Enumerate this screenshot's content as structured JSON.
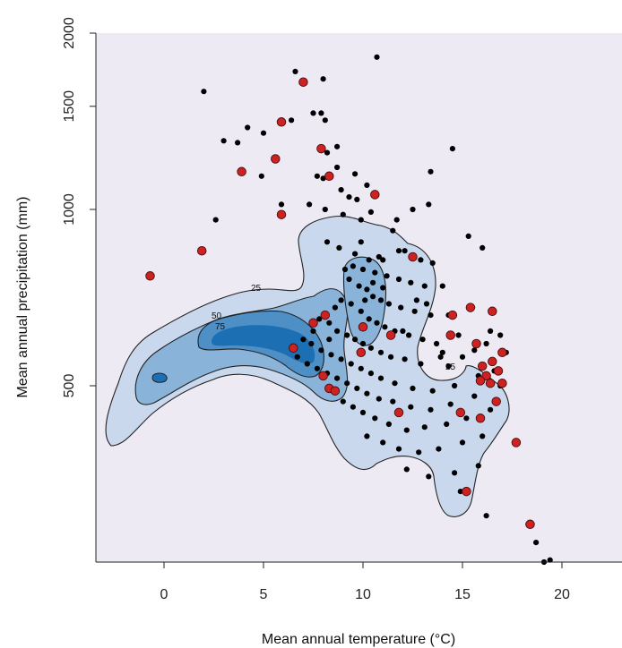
{
  "chart_data": {
    "type": "scatter",
    "title": "",
    "xlabel": "Mean annual temperature (°C)",
    "ylabel": "Mean annual precipitation (mm)",
    "xlim": [
      -3.5,
      23
    ],
    "ylim": [
      165,
      2000
    ],
    "y_scale": "log",
    "x_ticks": [
      0,
      5,
      10,
      15,
      20
    ],
    "y_ticks": [
      500,
      1000,
      1500,
      2000
    ],
    "grid": false,
    "background_color": "#eeeaf4",
    "contours": {
      "labels": [
        "25",
        "50",
        "75"
      ],
      "fill_colors": [
        "#c9d8ec",
        "#8ab3d9",
        "#4e8fc6",
        "#1c6fb3"
      ],
      "line_color": "#222222"
    },
    "series": [
      {
        "color": "#000000",
        "points": [
          [
            10.7,
            1820
          ],
          [
            6.6,
            1720
          ],
          [
            7.0,
            1660
          ],
          [
            8.0,
            1670
          ],
          [
            2.0,
            1590
          ],
          [
            6.4,
            1420
          ],
          [
            7.5,
            1460
          ],
          [
            7.9,
            1460
          ],
          [
            8.1,
            1420
          ],
          [
            4.2,
            1380
          ],
          [
            5.0,
            1350
          ],
          [
            3.0,
            1310
          ],
          [
            3.7,
            1300
          ],
          [
            8.7,
            1280
          ],
          [
            8.2,
            1250
          ],
          [
            14.5,
            1270
          ],
          [
            13.4,
            1160
          ],
          [
            4.9,
            1140
          ],
          [
            7.7,
            1140
          ],
          [
            8.7,
            1180
          ],
          [
            9.6,
            1150
          ],
          [
            8.0,
            1130
          ],
          [
            10.2,
            1100
          ],
          [
            8.9,
            1080
          ],
          [
            9.3,
            1050
          ],
          [
            9.7,
            1040
          ],
          [
            5.9,
            1020
          ],
          [
            7.3,
            1020
          ],
          [
            8.1,
            1000
          ],
          [
            9.0,
            980
          ],
          [
            9.9,
            960
          ],
          [
            10.4,
            990
          ],
          [
            11.7,
            960
          ],
          [
            12.5,
            1000
          ],
          [
            13.3,
            1020
          ],
          [
            2.6,
            960
          ],
          [
            11.5,
            920
          ],
          [
            15.3,
            900
          ],
          [
            16.0,
            860
          ],
          [
            12.1,
            850
          ],
          [
            8.2,
            880
          ],
          [
            8.8,
            860
          ],
          [
            9.6,
            840
          ],
          [
            10.3,
            820
          ],
          [
            11.0,
            820
          ],
          [
            12.9,
            820
          ],
          [
            13.5,
            810
          ],
          [
            10.0,
            790
          ],
          [
            10.6,
            780
          ],
          [
            11.2,
            770
          ],
          [
            11.8,
            760
          ],
          [
            12.4,
            750
          ],
          [
            13.1,
            740
          ],
          [
            14.0,
            740
          ],
          [
            9.3,
            760
          ],
          [
            9.8,
            740
          ],
          [
            10.2,
            730
          ],
          [
            10.5,
            710
          ],
          [
            10.9,
            700
          ],
          [
            11.3,
            690
          ],
          [
            11.9,
            680
          ],
          [
            12.6,
            670
          ],
          [
            13.4,
            660
          ],
          [
            14.3,
            660
          ],
          [
            15.5,
            680
          ],
          [
            8.9,
            700
          ],
          [
            9.4,
            690
          ],
          [
            9.9,
            670
          ],
          [
            10.3,
            650
          ],
          [
            10.7,
            640
          ],
          [
            11.1,
            630
          ],
          [
            11.6,
            620
          ],
          [
            12.3,
            610
          ],
          [
            13.0,
            600
          ],
          [
            13.7,
            590
          ],
          [
            14.8,
            610
          ],
          [
            16.4,
            620
          ],
          [
            7.8,
            650
          ],
          [
            8.3,
            640
          ],
          [
            8.7,
            620
          ],
          [
            9.2,
            610
          ],
          [
            9.6,
            600
          ],
          [
            10.0,
            590
          ],
          [
            10.4,
            580
          ],
          [
            10.9,
            570
          ],
          [
            11.4,
            560
          ],
          [
            12.1,
            555
          ],
          [
            12.9,
            545
          ],
          [
            14.0,
            570
          ],
          [
            15.0,
            560
          ],
          [
            16.2,
            590
          ],
          [
            17.2,
            570
          ],
          [
            7.0,
            600
          ],
          [
            7.4,
            590
          ],
          [
            7.9,
            575
          ],
          [
            8.4,
            565
          ],
          [
            8.9,
            555
          ],
          [
            9.4,
            545
          ],
          [
            9.9,
            535
          ],
          [
            10.4,
            525
          ],
          [
            10.9,
            515
          ],
          [
            11.6,
            505
          ],
          [
            12.5,
            495
          ],
          [
            13.5,
            490
          ],
          [
            14.6,
            500
          ],
          [
            15.8,
            520
          ],
          [
            16.6,
            530
          ],
          [
            6.7,
            560
          ],
          [
            7.2,
            545
          ],
          [
            7.7,
            535
          ],
          [
            8.2,
            525
          ],
          [
            8.7,
            515
          ],
          [
            9.2,
            505
          ],
          [
            9.7,
            495
          ],
          [
            10.2,
            485
          ],
          [
            10.8,
            475
          ],
          [
            11.5,
            470
          ],
          [
            12.4,
            460
          ],
          [
            13.4,
            455
          ],
          [
            14.4,
            465
          ],
          [
            15.6,
            480
          ],
          [
            16.9,
            500
          ],
          [
            9.0,
            470
          ],
          [
            9.5,
            460
          ],
          [
            10.0,
            450
          ],
          [
            10.6,
            440
          ],
          [
            11.3,
            430
          ],
          [
            12.2,
            420
          ],
          [
            13.1,
            425
          ],
          [
            14.2,
            430
          ],
          [
            15.2,
            440
          ],
          [
            16.4,
            455
          ],
          [
            10.2,
            410
          ],
          [
            11.0,
            400
          ],
          [
            11.8,
            390
          ],
          [
            12.8,
            385
          ],
          [
            13.8,
            390
          ],
          [
            15.0,
            400
          ],
          [
            16.0,
            410
          ],
          [
            12.2,
            360
          ],
          [
            13.3,
            350
          ],
          [
            14.6,
            355
          ],
          [
            15.8,
            365
          ],
          [
            14.9,
            330
          ],
          [
            16.2,
            300
          ],
          [
            18.3,
            290
          ],
          [
            18.7,
            270
          ],
          [
            19.1,
            250
          ],
          [
            19.4,
            252
          ],
          [
            12.0,
            620
          ],
          [
            11.8,
            850
          ],
          [
            10.8,
            830
          ],
          [
            9.9,
            880
          ],
          [
            13.9,
            560
          ],
          [
            14.3,
            540
          ],
          [
            15.6,
            575
          ],
          [
            16.9,
            610
          ],
          [
            10.1,
            700
          ],
          [
            10.5,
            750
          ],
          [
            11.0,
            735
          ],
          [
            9.5,
            800
          ],
          [
            9.1,
            790
          ],
          [
            12.7,
            700
          ],
          [
            13.2,
            690
          ],
          [
            8.6,
            680
          ],
          [
            8.3,
            600
          ],
          [
            7.5,
            620
          ]
        ]
      },
      {
        "color": "#cc2222",
        "points": [
          [
            7.0,
            1650
          ],
          [
            5.9,
            1410
          ],
          [
            7.9,
            1270
          ],
          [
            5.6,
            1220
          ],
          [
            3.9,
            1160
          ],
          [
            8.3,
            1140
          ],
          [
            10.6,
            1060
          ],
          [
            5.9,
            980
          ],
          [
            1.9,
            850
          ],
          [
            -0.7,
            770
          ],
          [
            12.5,
            830
          ],
          [
            8.1,
            660
          ],
          [
            14.5,
            660
          ],
          [
            15.4,
            680
          ],
          [
            16.5,
            670
          ],
          [
            14.4,
            610
          ],
          [
            10.0,
            630
          ],
          [
            11.4,
            610
          ],
          [
            7.5,
            640
          ],
          [
            6.5,
            580
          ],
          [
            9.9,
            570
          ],
          [
            15.7,
            590
          ],
          [
            17.0,
            570
          ],
          [
            16.5,
            550
          ],
          [
            16.0,
            540
          ],
          [
            16.8,
            530
          ],
          [
            16.2,
            520
          ],
          [
            15.9,
            510
          ],
          [
            16.4,
            505
          ],
          [
            17.0,
            505
          ],
          [
            8.0,
            520
          ],
          [
            8.3,
            495
          ],
          [
            8.6,
            490
          ],
          [
            16.7,
            470
          ],
          [
            14.9,
            450
          ],
          [
            15.9,
            440
          ],
          [
            11.8,
            450
          ],
          [
            17.7,
            400
          ],
          [
            15.2,
            330
          ],
          [
            18.4,
            290
          ]
        ]
      }
    ]
  }
}
